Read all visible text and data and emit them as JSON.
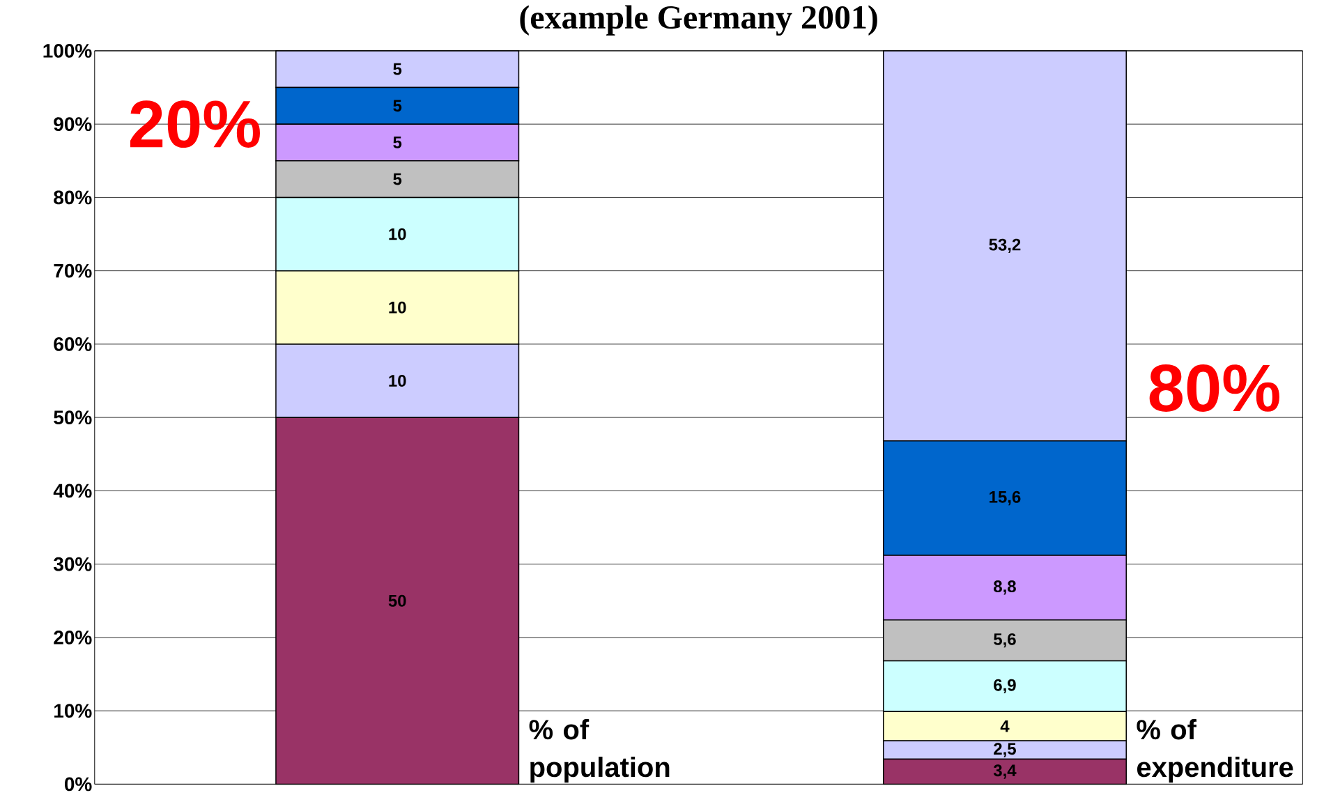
{
  "chart_data": {
    "type": "bar",
    "stacked": true,
    "title": "(example Germany 2001)",
    "categories": [
      "% of population",
      "% of expenditure"
    ],
    "series": [
      {
        "color": "#993366",
        "values": [
          50,
          3.4
        ],
        "value_labels": [
          "50",
          "3,4"
        ]
      },
      {
        "color": "#ccccff",
        "values": [
          10,
          2.5
        ],
        "value_labels": [
          "10",
          "2,5"
        ]
      },
      {
        "color": "#ffffcc",
        "values": [
          10,
          4
        ],
        "value_labels": [
          "10",
          "4"
        ]
      },
      {
        "color": "#ccffff",
        "values": [
          10,
          6.9
        ],
        "value_labels": [
          "10",
          "6,9"
        ]
      },
      {
        "color": "#c0c0c0",
        "values": [
          5,
          5.6
        ],
        "value_labels": [
          "5",
          "5,6"
        ]
      },
      {
        "color": "#cc99ff",
        "values": [
          5,
          8.8
        ],
        "value_labels": [
          "5",
          "8,8"
        ]
      },
      {
        "color": "#0066cc",
        "values": [
          5,
          15.6
        ],
        "value_labels": [
          "5",
          "15,6"
        ]
      },
      {
        "color": "#ccccff",
        "values": [
          5,
          53.2
        ],
        "value_labels": [
          "5",
          "53,2"
        ]
      }
    ],
    "ylim": [
      0,
      100
    ],
    "yticks": [
      {
        "value": 0,
        "label": "0%"
      },
      {
        "value": 10,
        "label": "10%"
      },
      {
        "value": 20,
        "label": "20%"
      },
      {
        "value": 30,
        "label": "30%"
      },
      {
        "value": 40,
        "label": "40%"
      },
      {
        "value": 50,
        "label": "50%"
      },
      {
        "value": 60,
        "label": "60%"
      },
      {
        "value": 70,
        "label": "70%"
      },
      {
        "value": 80,
        "label": "80%"
      },
      {
        "value": 90,
        "label": "90%"
      },
      {
        "value": 100,
        "label": "100%"
      }
    ],
    "grid": "y",
    "annotations": [
      "20%",
      "80%"
    ]
  }
}
